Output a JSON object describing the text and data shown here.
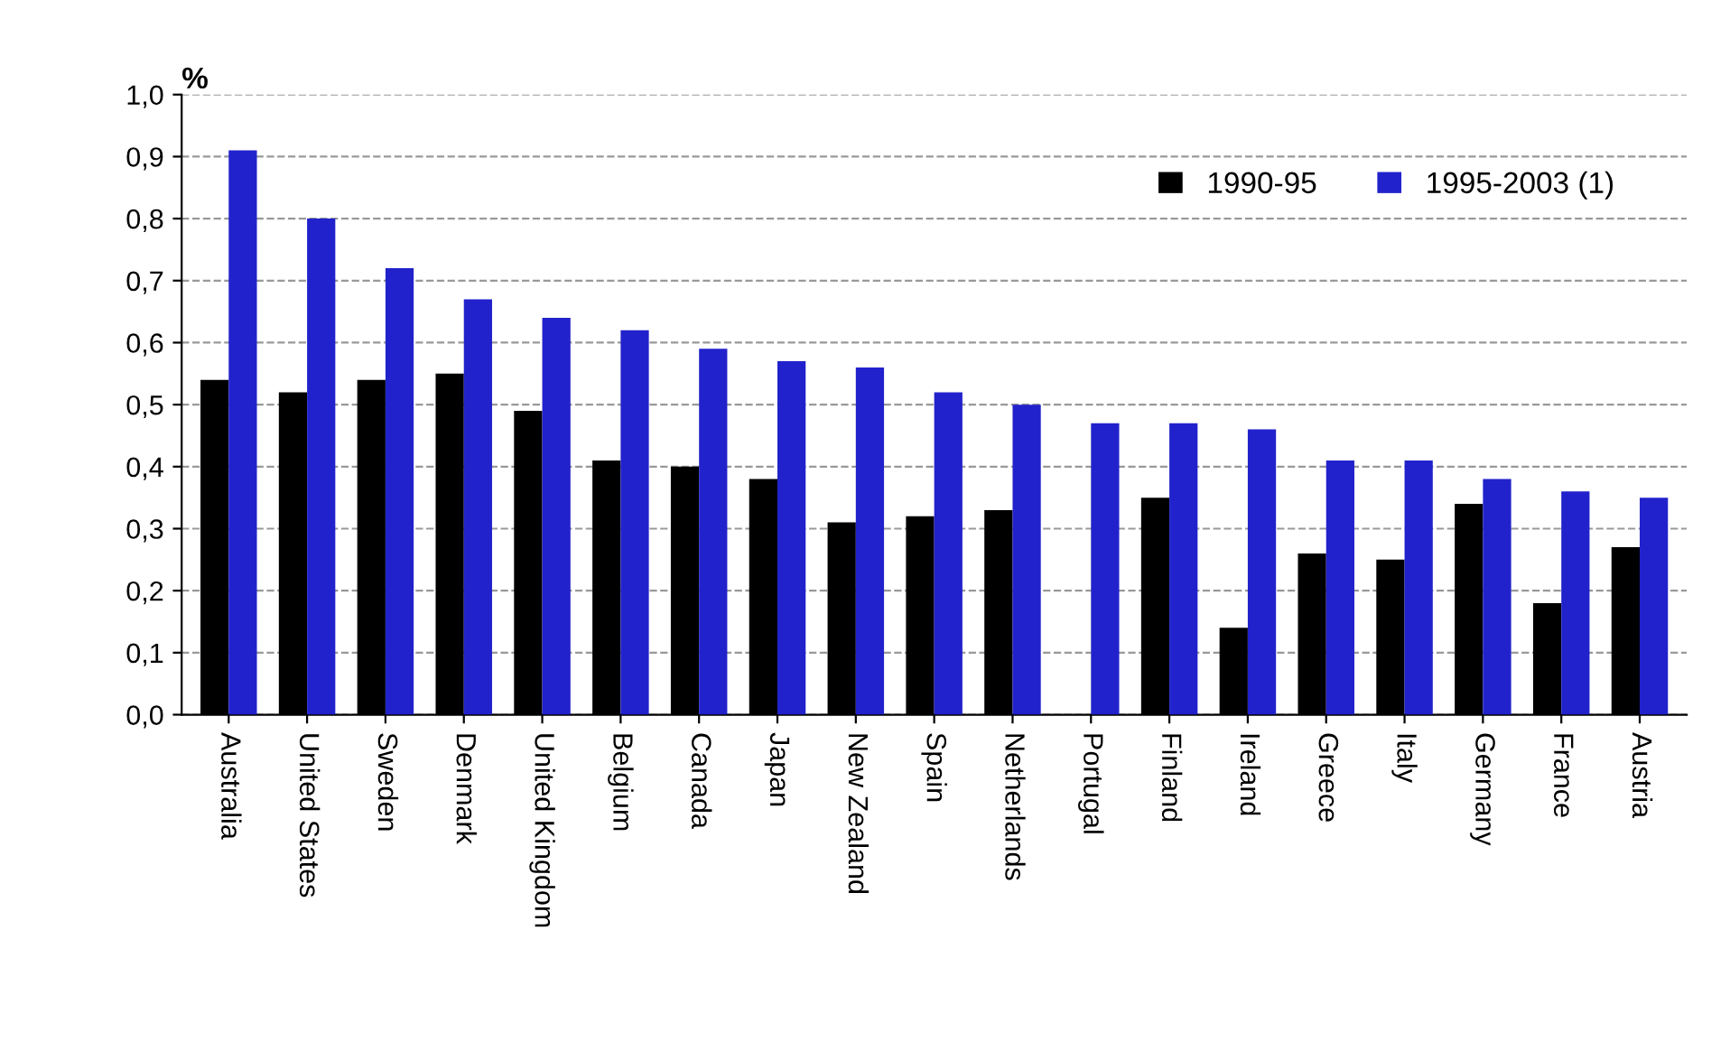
{
  "chart_data": {
    "type": "bar",
    "ylabel": "%",
    "categories": [
      "Australia",
      "United States",
      "Sweden",
      "Denmark",
      "United Kingdom",
      "Belgium",
      "Canada",
      "Japan",
      "New Zealand",
      "Spain",
      "Netherlands",
      "Portugal",
      "Finland",
      "Ireland",
      "Greece",
      "Italy",
      "Germany",
      "France",
      "Austria"
    ],
    "series": [
      {
        "name": "1990-95",
        "color": "#000000",
        "values": [
          0.54,
          0.52,
          0.54,
          0.55,
          0.49,
          0.41,
          0.4,
          0.38,
          0.31,
          0.32,
          0.33,
          null,
          0.35,
          0.14,
          0.26,
          0.25,
          0.34,
          0.18,
          0.27
        ]
      },
      {
        "name": "1995-2003 (1)",
        "color": "#2222cc",
        "values": [
          0.91,
          0.8,
          0.72,
          0.67,
          0.64,
          0.62,
          0.59,
          0.57,
          0.56,
          0.52,
          0.5,
          0.47,
          0.47,
          0.46,
          0.41,
          0.41,
          0.38,
          0.36,
          0.35
        ]
      }
    ],
    "ylim": [
      0,
      1
    ],
    "yticks": [
      {
        "value": 0,
        "label": "0,0"
      },
      {
        "value": 0.1,
        "label": "0,1"
      },
      {
        "value": 0.2,
        "label": "0,2"
      },
      {
        "value": 0.3,
        "label": "0,3"
      },
      {
        "value": 0.4,
        "label": "0,4"
      },
      {
        "value": 0.5,
        "label": "0,5"
      },
      {
        "value": 0.6,
        "label": "0,6"
      },
      {
        "value": 0.7,
        "label": "0,7"
      },
      {
        "value": 0.8,
        "label": "0,8"
      },
      {
        "value": 0.9,
        "label": "0,9"
      },
      {
        "value": 1,
        "label": "1,0"
      }
    ],
    "grid": "y",
    "legend": "top right"
  }
}
